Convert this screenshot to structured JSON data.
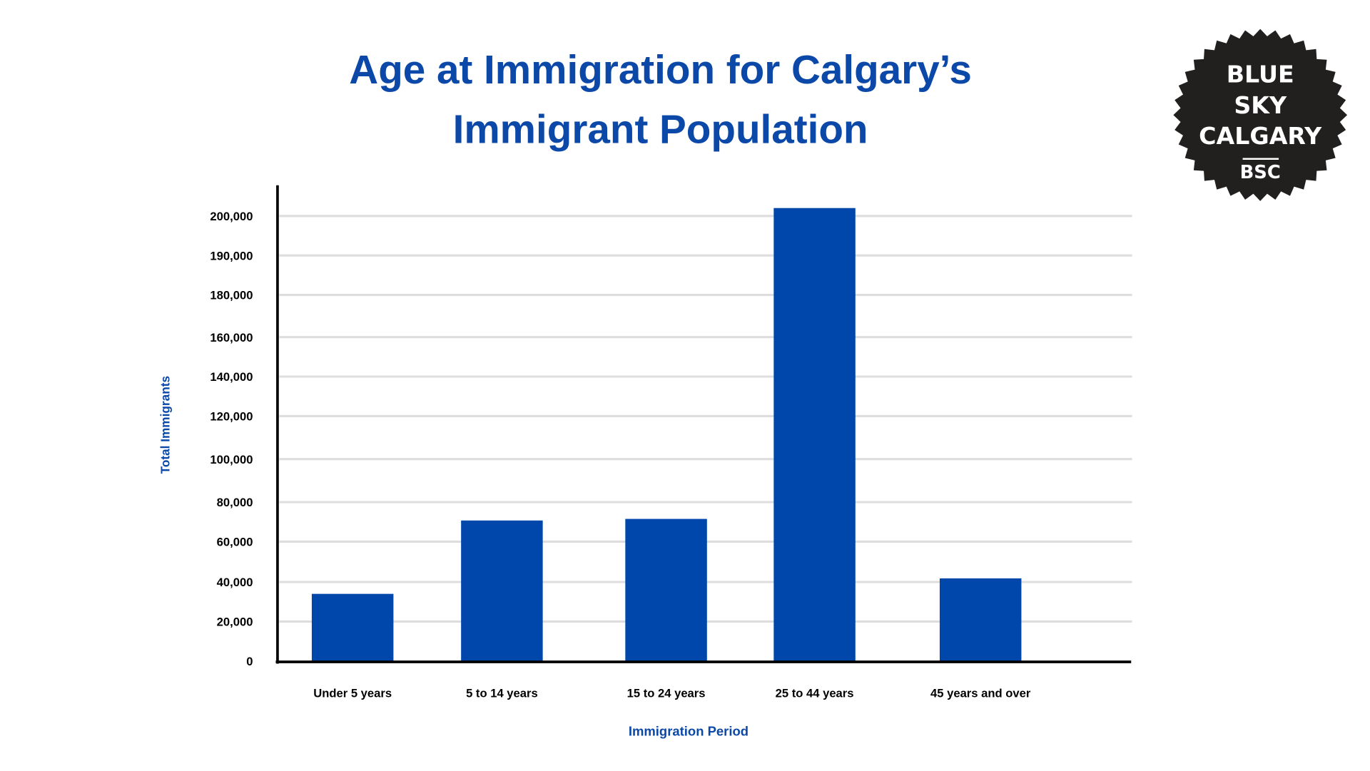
{
  "chart_data": {
    "type": "bar",
    "title": [
      "Age at Immigration for Calgary’s",
      "Immigrant Population"
    ],
    "xlabel": "Immigration Period",
    "ylabel": "Total Immigrants",
    "categories": [
      "Under 5 years",
      "5 to 14 years",
      "15 to 24 years",
      "25 to 44 years",
      "45 years and over"
    ],
    "values": [
      34000,
      70700,
      71500,
      202000,
      41800
    ],
    "y_ticks": [
      0,
      20000,
      40000,
      60000,
      80000,
      100000,
      120000,
      140000,
      160000,
      180000,
      190000,
      200000
    ],
    "y_tick_labels": [
      "0",
      "20,000",
      "40,000",
      "60,000",
      "80,000",
      "100,000",
      "120,000",
      "140,000",
      "160,000",
      "180,000",
      "190,000",
      "200,000"
    ],
    "ylim": [
      0,
      200000
    ],
    "grid": true,
    "legend": "none",
    "colors": {
      "bar": "#0047ab",
      "title": "#0b48a8",
      "grid": "#dddddd",
      "axis": "#000000"
    }
  },
  "logo": {
    "lines": [
      "BLUE",
      "SKY",
      "CALGARY"
    ],
    "abbr": "BSC",
    "color": "#221f1f"
  }
}
